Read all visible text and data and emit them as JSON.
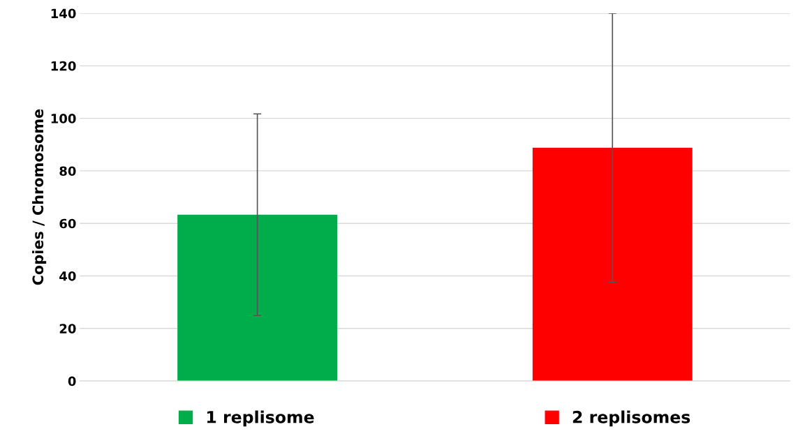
{
  "chart_data": {
    "type": "bar",
    "ylabel": "Copies / Chromosome",
    "categories": [
      null,
      null
    ],
    "series": [
      {
        "name": "1 replisome",
        "color": "#00ad4a",
        "values": [
          63.3,
          null
        ],
        "errors": [
          38.4,
          null
        ]
      },
      {
        "name": "2 replisomes",
        "color": "#ff0000",
        "values": [
          null,
          88.8
        ],
        "errors": [
          null,
          51.2
        ]
      }
    ],
    "ylim": [
      0,
      140
    ],
    "yticks": [
      0,
      20,
      40,
      60,
      80,
      100,
      120,
      140
    ],
    "grid": "y",
    "legend": "bottom"
  }
}
